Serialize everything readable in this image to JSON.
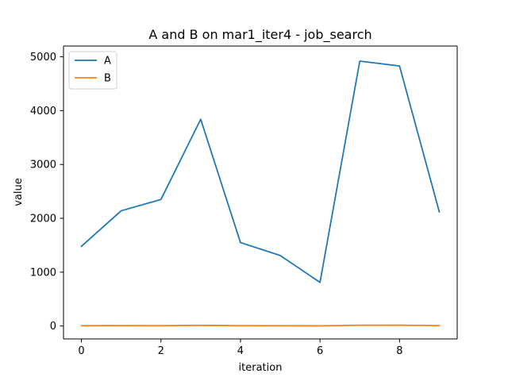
{
  "chart_data": {
    "type": "line",
    "title": "A and B on mar1_iter4 - job_search",
    "xlabel": "iteration",
    "ylabel": "value",
    "x": [
      0,
      1,
      2,
      3,
      4,
      5,
      6,
      7,
      8,
      9
    ],
    "xlim": [
      -0.45,
      9.45
    ],
    "ylim": [
      -240,
      5200
    ],
    "xticks": [
      0,
      2,
      4,
      6,
      8
    ],
    "yticks": [
      0,
      1000,
      2000,
      3000,
      4000,
      5000
    ],
    "grid": false,
    "legend_position": "top-left",
    "series": [
      {
        "name": "A",
        "color": "#1f77b4",
        "values": [
          1480,
          2140,
          2350,
          3840,
          1550,
          1310,
          810,
          4920,
          4830,
          2120
        ]
      },
      {
        "name": "B",
        "color": "#ff7f0e",
        "values": [
          5,
          8,
          6,
          12,
          6,
          5,
          3,
          14,
          15,
          7
        ]
      }
    ]
  }
}
